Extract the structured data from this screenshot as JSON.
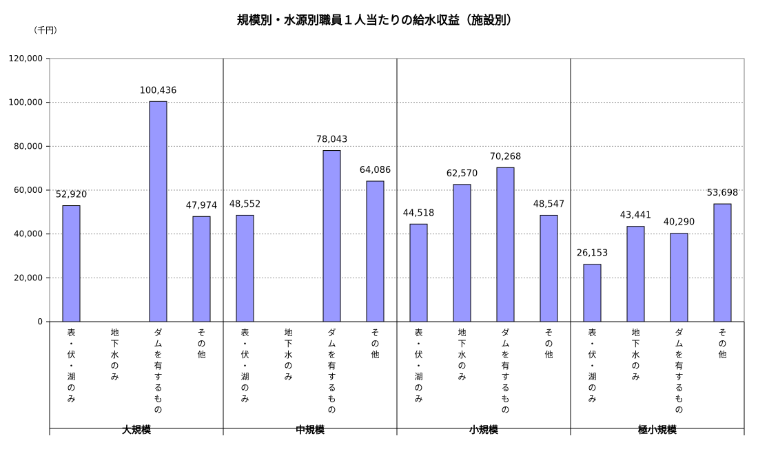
{
  "chart_data": {
    "type": "bar",
    "title": "規模別・水源別職員１人当たりの給水収益（施設別）",
    "unit_label": "（千円）",
    "ylim": [
      0,
      120000
    ],
    "y_ticks": [
      "0",
      "20,000",
      "40,000",
      "60,000",
      "80,000",
      "100,000",
      "120,000"
    ],
    "grid": true,
    "bar_color": "#9999ff",
    "groups": [
      {
        "name": "大規模",
        "categories": [
          "表・伏・湖のみ",
          "地下水のみ",
          "ダムを有するもの",
          "その他"
        ],
        "values": [
          52920,
          null,
          100436,
          47974
        ],
        "labels": [
          "52,920",
          "",
          "100,436",
          "47,974"
        ]
      },
      {
        "name": "中規模",
        "categories": [
          "表・伏・湖のみ",
          "地下水のみ",
          "ダムを有するもの",
          "その他"
        ],
        "values": [
          48552,
          null,
          78043,
          64086
        ],
        "labels": [
          "48,552",
          "",
          "78,043",
          "64,086"
        ]
      },
      {
        "name": "小規模",
        "categories": [
          "表・伏・湖のみ",
          "地下水のみ",
          "ダムを有するもの",
          "その他"
        ],
        "values": [
          44518,
          62570,
          70268,
          48547
        ],
        "labels": [
          "44,518",
          "62,570",
          "70,268",
          "48,547"
        ]
      },
      {
        "name": "極小規模",
        "categories": [
          "表・伏・湖のみ",
          "地下水のみ",
          "ダムを有するもの",
          "その他"
        ],
        "values": [
          26153,
          43441,
          40290,
          53698
        ],
        "labels": [
          "26,153",
          "43,441",
          "40,290",
          "53,698"
        ]
      }
    ]
  }
}
